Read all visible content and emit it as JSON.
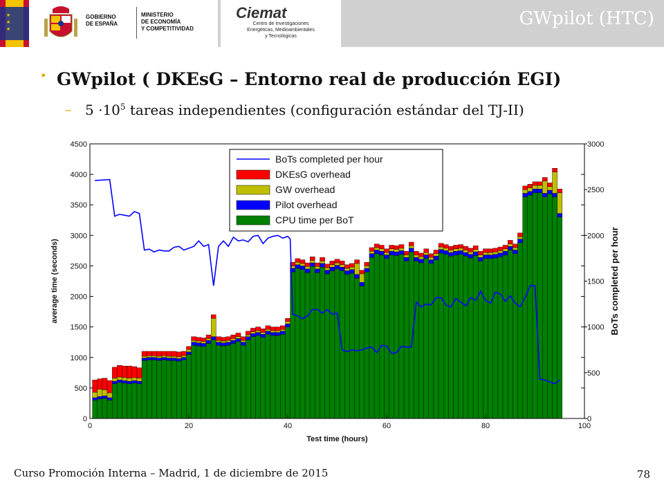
{
  "header": {
    "gob_text": [
      "GOBIERNO",
      "DE ESPAÑA"
    ],
    "ministry_text": [
      "MINISTERIO",
      "DE ECONOMÍA",
      "Y COMPETITIVIDAD"
    ],
    "ciemat_logo": "Ciemat",
    "ciemat_sub": [
      "Centro de Investigaciones",
      "Energéticas, Medioambientales",
      "y Tecnológicas"
    ],
    "section_title": "GWpilot (HTC)"
  },
  "content": {
    "bullet1": "GWpilot ( DKEsG  – Entorno real de producción EGI)",
    "bullet2_prefix": "5 ·10",
    "bullet2_sup": "5",
    "bullet2_suffix": " tareas independientes (configuración estándar del TJ-II)"
  },
  "footer": {
    "text": "Curso Promoción Interna – Madrid, 1 de diciembre de 2015",
    "page": "78"
  },
  "colors": {
    "cpu": "#008000",
    "pilot": "#0000ff",
    "gw": "#bfbf00",
    "dkesg": "#ff0000",
    "line": "#0000ff"
  },
  "chart_data": {
    "type": "bar",
    "stacked": true,
    "xlabel": "Test time (hours)",
    "ylabel": "average time (seconds)",
    "y2label": "BoTs completed per hour",
    "xlim": [
      0,
      100
    ],
    "ylim": [
      0,
      4500
    ],
    "y2lim": [
      0,
      3000
    ],
    "xticks": [
      "0",
      "20",
      "40",
      "60",
      "80",
      "100"
    ],
    "yticks": [
      "0",
      "500",
      "1000",
      "1500",
      "2000",
      "2500",
      "3000",
      "3500",
      "4000",
      "4500"
    ],
    "y2ticks": [
      "0",
      "500",
      "1000",
      "1500",
      "2000",
      "2500",
      "3000"
    ],
    "legend_position": "top",
    "x": [
      1,
      2,
      3,
      4,
      5,
      6,
      7,
      8,
      9,
      10,
      11,
      12,
      13,
      14,
      15,
      16,
      17,
      18,
      19,
      20,
      21,
      22,
      23,
      24,
      25,
      26,
      27,
      28,
      29,
      30,
      31,
      32,
      33,
      34,
      35,
      36,
      37,
      38,
      39,
      40,
      41,
      42,
      43,
      44,
      45,
      46,
      47,
      48,
      49,
      50,
      51,
      52,
      53,
      54,
      55,
      56,
      57,
      58,
      59,
      60,
      61,
      62,
      63,
      64,
      65,
      66,
      67,
      68,
      69,
      70,
      71,
      72,
      73,
      74,
      75,
      76,
      77,
      78,
      79,
      80,
      81,
      82,
      83,
      84,
      85,
      86,
      87,
      88,
      89,
      90,
      91,
      92,
      93,
      94,
      95
    ],
    "series": [
      {
        "name": "CPU time per BoT",
        "values": [
          300,
          320,
          330,
          300,
          570,
          590,
          580,
          570,
          580,
          570,
          950,
          960,
          960,
          950,
          960,
          950,
          950,
          940,
          960,
          1050,
          1200,
          1190,
          1180,
          1230,
          1290,
          1200,
          1190,
          1200,
          1230,
          1260,
          1200,
          1290,
          1340,
          1360,
          1330,
          1380,
          1360,
          1360,
          1380,
          1500,
          2400,
          2460,
          2440,
          2390,
          2490,
          2390,
          2480,
          2370,
          2420,
          2450,
          2420,
          2360,
          2380,
          2300,
          2170,
          2400,
          2640,
          2700,
          2680,
          2620,
          2680,
          2670,
          2690,
          2580,
          2730,
          2580,
          2550,
          2620,
          2540,
          2600,
          2710,
          2690,
          2660,
          2680,
          2690,
          2660,
          2630,
          2670,
          2580,
          2620,
          2620,
          2630,
          2650,
          2680,
          2760,
          2700,
          2880,
          3630,
          3660,
          3700,
          3700,
          3630,
          3680,
          3630,
          3300
        ]
      },
      {
        "name": "Pilot overhead",
        "values": [
          40,
          40,
          40,
          40,
          40,
          40,
          40,
          40,
          40,
          40,
          40,
          40,
          40,
          40,
          40,
          40,
          40,
          40,
          40,
          40,
          50,
          50,
          50,
          50,
          50,
          50,
          50,
          50,
          50,
          50,
          50,
          50,
          50,
          50,
          50,
          50,
          50,
          50,
          50,
          50,
          60,
          60,
          60,
          60,
          60,
          60,
          60,
          60,
          60,
          60,
          60,
          60,
          60,
          60,
          60,
          60,
          60,
          60,
          60,
          60,
          60,
          60,
          60,
          60,
          60,
          60,
          60,
          60,
          60,
          60,
          60,
          60,
          60,
          60,
          60,
          60,
          60,
          60,
          60,
          60,
          60,
          60,
          60,
          60,
          60,
          60,
          60,
          60,
          60,
          60,
          60,
          60,
          60,
          60,
          60
        ]
      },
      {
        "name": "GW overhead",
        "values": [
          90,
          120,
          100,
          80,
          50,
          50,
          50,
          50,
          50,
          50,
          30,
          30,
          30,
          30,
          30,
          30,
          30,
          30,
          30,
          40,
          30,
          30,
          30,
          30,
          300,
          30,
          30,
          30,
          30,
          30,
          30,
          30,
          30,
          30,
          30,
          30,
          30,
          30,
          30,
          40,
          40,
          40,
          40,
          40,
          40,
          40,
          40,
          40,
          40,
          40,
          40,
          40,
          40,
          180,
          140,
          40,
          40,
          40,
          40,
          40,
          40,
          40,
          40,
          40,
          40,
          40,
          40,
          40,
          40,
          40,
          40,
          40,
          40,
          40,
          40,
          40,
          40,
          40,
          40,
          40,
          40,
          40,
          40,
          40,
          40,
          40,
          40,
          60,
          60,
          60,
          60,
          200,
          60,
          350,
          340
        ]
      },
      {
        "name": "DKEsG overhead",
        "values": [
          200,
          170,
          190,
          200,
          180,
          190,
          190,
          200,
          180,
          170,
          80,
          70,
          70,
          80,
          70,
          80,
          80,
          80,
          70,
          50,
          60,
          60,
          60,
          60,
          60,
          60,
          60,
          60,
          60,
          60,
          60,
          60,
          60,
          60,
          60,
          60,
          60,
          60,
          60,
          50,
          60,
          60,
          60,
          60,
          60,
          60,
          60,
          60,
          60,
          60,
          60,
          60,
          60,
          60,
          60,
          60,
          60,
          60,
          60,
          60,
          60,
          60,
          60,
          60,
          60,
          60,
          60,
          60,
          60,
          60,
          60,
          60,
          60,
          60,
          60,
          60,
          60,
          60,
          60,
          60,
          60,
          60,
          60,
          60,
          60,
          60,
          60,
          60,
          60,
          60,
          60,
          60,
          60,
          60,
          60
        ]
      },
      {
        "name": "BoTs completed per hour",
        "axis": "right",
        "type": "line",
        "x": [
          1,
          4,
          5,
          6,
          7,
          8,
          9,
          10,
          11,
          12,
          13,
          14,
          15,
          16,
          17,
          18,
          19,
          20,
          21,
          22,
          23,
          24,
          25,
          26,
          27,
          28,
          29,
          30,
          31,
          32,
          33,
          34,
          35,
          36,
          37,
          38,
          39,
          40,
          40.5,
          41,
          42,
          43,
          44,
          45,
          46,
          47,
          48,
          49,
          50,
          51,
          52,
          53,
          54,
          55,
          56,
          57,
          58,
          59,
          60,
          61,
          62,
          63,
          64,
          65,
          66,
          67,
          68,
          69,
          70,
          71,
          72,
          73,
          74,
          75,
          76,
          77,
          78,
          79,
          80,
          81,
          82,
          83,
          84,
          85,
          86,
          87,
          88,
          89,
          90,
          91,
          92,
          93,
          94,
          95
        ],
        "values": [
          2600,
          2610,
          2210,
          2230,
          2220,
          2210,
          2260,
          2240,
          1840,
          1850,
          1820,
          1840,
          1830,
          1830,
          1870,
          1880,
          1840,
          1860,
          1880,
          1940,
          1880,
          1900,
          1450,
          1880,
          1940,
          1880,
          1980,
          1940,
          1950,
          1930,
          1990,
          2000,
          1910,
          1970,
          1990,
          2000,
          1970,
          1990,
          1960,
          1140,
          1120,
          1090,
          1120,
          1190,
          1190,
          1150,
          1190,
          1140,
          1150,
          750,
          730,
          750,
          740,
          750,
          770,
          780,
          720,
          800,
          790,
          710,
          720,
          790,
          780,
          780,
          1270,
          1220,
          1250,
          1240,
          1320,
          1320,
          1240,
          1220,
          1310,
          1270,
          1230,
          1320,
          1290,
          1390,
          1290,
          1260,
          1380,
          1360,
          1280,
          1340,
          1260,
          1220,
          1320,
          1450,
          1450,
          430,
          420,
          400,
          380,
          420
        ]
      }
    ]
  }
}
